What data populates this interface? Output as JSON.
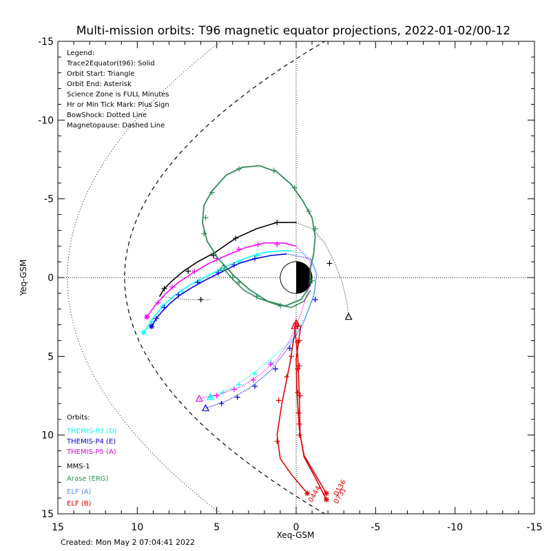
{
  "chart_data": {
    "type": "line",
    "title": "Multi-mission orbits: T96 magnetic equator projections, 2022-01-02/00-12",
    "xlabel": "Xeq-GSM",
    "ylabel": "Yeq-GSM",
    "xlim": [
      15,
      -15
    ],
    "ylim": [
      -15,
      15
    ],
    "x_ticks": [
      {
        "value": 15,
        "label": "15"
      },
      {
        "value": 10,
        "label": "10"
      },
      {
        "value": 5,
        "label": "5"
      },
      {
        "value": 0,
        "label": "0"
      },
      {
        "value": -5,
        "label": "-5"
      },
      {
        "value": -10,
        "label": "-10"
      },
      {
        "value": -15,
        "label": "-15"
      }
    ],
    "y_ticks": [
      {
        "value": -15,
        "label": "-15"
      },
      {
        "value": -10,
        "label": "-10"
      },
      {
        "value": -5,
        "label": "-5"
      },
      {
        "value": 0,
        "label": "0"
      },
      {
        "value": 5,
        "label": "5"
      },
      {
        "value": 10,
        "label": "10"
      },
      {
        "value": 15,
        "label": "15"
      }
    ],
    "legend_lines": [
      "Legend:",
      "Trace2Equator(t96): Solid",
      "Orbit Start: Triangle",
      "Orbit End: Asterisk",
      "Science Zone is FULL Minutes",
      "Hr or Min Tick Mark: Plus Sign",
      "BowShock: Dotted Line",
      "Magnetopause: Dashed Line"
    ],
    "orbits_title": "Orbits:",
    "series": [
      {
        "name": "THEMIS-P3 (D)",
        "color": "#00ffff",
        "legend_color": "#00ffff",
        "points": [
          [
            9.6,
            3.5
          ],
          [
            9.2,
            2.9
          ],
          [
            8.8,
            2.3
          ],
          [
            8.2,
            1.6
          ],
          [
            7.6,
            1.1
          ],
          [
            6.9,
            0.6
          ],
          [
            6.0,
            0.1
          ],
          [
            5.0,
            -0.4
          ],
          [
            4.0,
            -0.9
          ],
          [
            3.0,
            -1.3
          ],
          [
            2.0,
            -1.6
          ],
          [
            1.0,
            -1.7
          ],
          [
            0.3,
            -1.7
          ]
        ],
        "ticks": [
          [
            9.6,
            3.5
          ],
          [
            9.1,
            2.8
          ],
          [
            8.4,
            1.8
          ],
          [
            7.2,
            0.9
          ],
          [
            6.1,
            0.2
          ],
          [
            4.8,
            -0.5
          ],
          [
            3.6,
            -1.0
          ],
          [
            2.5,
            -1.4
          ]
        ],
        "start": [
          5.4,
          7.6
        ],
        "end": [
          9.6,
          3.5
        ]
      },
      {
        "name": "THEMIS-P4 (E)",
        "color": "#0000dd",
        "legend_color": "#0000dd",
        "points": [
          [
            9.1,
            3.1
          ],
          [
            8.8,
            2.6
          ],
          [
            8.4,
            2.1
          ],
          [
            7.9,
            1.6
          ],
          [
            7.3,
            1.1
          ],
          [
            6.5,
            0.6
          ],
          [
            5.6,
            0.1
          ],
          [
            4.6,
            -0.4
          ],
          [
            3.6,
            -0.9
          ],
          [
            2.6,
            -1.2
          ],
          [
            1.6,
            -1.4
          ],
          [
            0.6,
            -1.5
          ]
        ],
        "ticks": [
          [
            9.1,
            3.1
          ],
          [
            8.8,
            2.6
          ],
          [
            8.3,
            1.9
          ],
          [
            7.4,
            1.1
          ],
          [
            6.2,
            0.3
          ],
          [
            4.9,
            -0.3
          ],
          [
            3.9,
            -0.8
          ],
          [
            2.6,
            -1.2
          ]
        ],
        "start": [
          5.7,
          8.3
        ],
        "end": [
          9.1,
          3.1
        ]
      },
      {
        "name": "THEMIS-P5 (A)",
        "color": "#ff00ff",
        "legend_color": "#dd00dd",
        "points": [
          [
            9.4,
            2.5
          ],
          [
            8.9,
            1.8
          ],
          [
            8.2,
            1.0
          ],
          [
            7.4,
            0.3
          ],
          [
            6.5,
            -0.3
          ],
          [
            5.5,
            -0.9
          ],
          [
            4.4,
            -1.4
          ],
          [
            3.2,
            -1.9
          ],
          [
            2.0,
            -2.2
          ],
          [
            0.8,
            -2.2
          ],
          [
            0.0,
            -2.0
          ]
        ],
        "ticks": [
          [
            9.4,
            2.5
          ],
          [
            8.7,
            1.6
          ],
          [
            7.8,
            0.6
          ],
          [
            6.4,
            -0.4
          ],
          [
            5.0,
            -1.2
          ],
          [
            3.6,
            -1.8
          ],
          [
            2.4,
            -2.1
          ],
          [
            1.2,
            -2.1
          ]
        ],
        "start": [
          6.1,
          7.7
        ],
        "end": [
          9.4,
          2.5
        ]
      },
      {
        "name": "MMS-1",
        "color": "#000000",
        "legend_color": "#000000",
        "points": [
          [
            8.6,
            1.2
          ],
          [
            8.3,
            0.7
          ],
          [
            7.8,
            0.2
          ],
          [
            7.1,
            -0.4
          ],
          [
            6.2,
            -1.0
          ],
          [
            5.1,
            -1.6
          ],
          [
            3.8,
            -2.5
          ],
          [
            2.5,
            -3.1
          ],
          [
            1.2,
            -3.5
          ],
          [
            0.0,
            -3.5
          ]
        ],
        "ticks": [
          [
            8.3,
            0.7
          ],
          [
            6.8,
            -0.4
          ],
          [
            5.2,
            -1.4
          ],
          [
            3.8,
            -2.5
          ],
          [
            1.2,
            -3.5
          ]
        ],
        "dotted": [
          [
            0.0,
            -3.5
          ],
          [
            -1.0,
            -3.1
          ],
          [
            -1.8,
            -2.2
          ],
          [
            -2.4,
            -1.0
          ],
          [
            -2.9,
            0.3
          ],
          [
            -3.2,
            1.6
          ],
          [
            -3.3,
            2.5
          ]
        ],
        "dotted_ticks": [
          [
            -2.1,
            -0.9
          ]
        ],
        "tail_dotted": [
          [
            8.6,
            1.2
          ],
          [
            7.8,
            1.3
          ],
          [
            6.8,
            1.4
          ],
          [
            6.0,
            1.4
          ],
          [
            5.4,
            1.4
          ]
        ],
        "tail_ticks": [
          [
            6.0,
            1.4
          ]
        ],
        "start": [
          -3.3,
          2.5
        ],
        "end": null
      },
      {
        "name": "Arase (ERG)",
        "color": "#2e8b57",
        "legend_color": "#2e8b57",
        "loop": [
          [
            -0.9,
            -0.6
          ],
          [
            -1.1,
            -1.5
          ],
          [
            -1.2,
            -2.6
          ],
          [
            -1.0,
            -3.8
          ],
          [
            -0.4,
            -4.9
          ],
          [
            0.3,
            -5.9
          ],
          [
            1.2,
            -6.7
          ],
          [
            2.3,
            -7.1
          ],
          [
            3.4,
            -7.0
          ],
          [
            4.4,
            -6.5
          ],
          [
            5.3,
            -5.5
          ],
          [
            5.8,
            -4.6
          ],
          [
            5.9,
            -3.5
          ],
          [
            5.6,
            -2.3
          ],
          [
            4.9,
            -1.2
          ],
          [
            3.9,
            -0.1
          ],
          [
            2.9,
            0.8
          ],
          [
            1.8,
            1.5
          ],
          [
            0.7,
            1.8
          ],
          [
            -0.3,
            1.4
          ],
          [
            -0.9,
            0.5
          ],
          [
            -0.9,
            -0.6
          ]
        ],
        "inner": [
          [
            4.6,
            -0.6
          ],
          [
            4.0,
            0.1
          ],
          [
            3.3,
            0.8
          ],
          [
            2.4,
            1.3
          ],
          [
            1.3,
            1.7
          ],
          [
            0.3,
            1.9
          ],
          [
            -0.5,
            1.5
          ],
          [
            -0.9,
            0.8
          ]
        ],
        "ticks": [
          [
            -1.2,
            -3.1
          ],
          [
            -0.8,
            -4.2
          ],
          [
            0.1,
            -5.7
          ],
          [
            1.4,
            -6.8
          ],
          [
            3.6,
            -6.9
          ],
          [
            5.3,
            -5.4
          ],
          [
            5.7,
            -3.8
          ],
          [
            5.8,
            -2.8
          ],
          [
            4.0,
            0.0
          ],
          [
            3.6,
            0.3
          ],
          [
            2.5,
            1.2
          ],
          [
            1.0,
            1.8
          ],
          [
            -1.0,
            0.2
          ]
        ],
        "start": [
          4.6,
          -0.6
        ],
        "end": null
      },
      {
        "name": "ELF (A)",
        "color": "#dd0000",
        "legend_color": "#5588ff",
        "points": [
          [
            0.1,
            3.1
          ],
          [
            -0.1,
            5.0
          ],
          [
            -0.2,
            7.5
          ],
          [
            -0.25,
            10.0
          ],
          [
            -0.5,
            11.3
          ],
          [
            -1.2,
            12.5
          ],
          [
            -1.9,
            13.7
          ]
        ],
        "ticks": [
          [
            -0.1,
            3.1
          ],
          [
            -0.2,
            4.0
          ],
          [
            -0.2,
            5.6
          ],
          [
            -0.25,
            7.5
          ],
          [
            -0.2,
            9.3
          ],
          [
            -0.2,
            10.0
          ]
        ],
        "start": [
          0.1,
          3.1
        ],
        "end": [
          -1.9,
          13.7
        ]
      },
      {
        "name": "ELF (B)",
        "color": "#dd0000",
        "legend_color": "#dd0000",
        "points": [
          [
            0.0,
            2.9
          ],
          [
            0.4,
            5.5
          ],
          [
            0.9,
            8.0
          ],
          [
            1.2,
            10.0
          ],
          [
            1.0,
            11.5
          ],
          [
            0.3,
            12.5
          ],
          [
            -0.7,
            13.7
          ]
        ],
        "ticks": [
          [
            0.0,
            2.9
          ],
          [
            0.3,
            5.0
          ],
          [
            0.6,
            6.3
          ],
          [
            1.1,
            7.8
          ],
          [
            1.2,
            10.4
          ]
        ],
        "extra": [
          [
            -0.3,
            3.0
          ],
          [
            0.0,
            5.2
          ],
          [
            -0.05,
            7.3
          ],
          [
            -0.2,
            9.6
          ],
          [
            -0.5,
            11.4
          ],
          [
            -1.2,
            12.7
          ],
          [
            -1.9,
            14.1
          ]
        ],
        "extra_ticks": [
          [
            -0.1,
            4.1
          ],
          [
            -0.1,
            5.8
          ],
          [
            -0.1,
            7.3
          ],
          [
            -0.15,
            8.6
          ]
        ],
        "start": [
          0.0,
          2.9
        ],
        "end": [
          -0.7,
          13.7
        ],
        "end2": [
          -1.9,
          14.1
        ]
      }
    ],
    "annotations": [
      {
        "text": "0444",
        "x": -1.0,
        "y": 14.3,
        "color": "#dd0000"
      },
      {
        "text": "0136",
        "x": -2.6,
        "y": 13.9,
        "color": "#dd0000"
      },
      {
        "text": "0731",
        "x": -2.6,
        "y": 14.4,
        "color": "#dd0000"
      }
    ],
    "grid": "dotted axes at x=0 and y=0",
    "legend_placement": "top-left (styles) and bottom-left (orbits)"
  },
  "footer": {
    "created": "Created: Mon May  2 07:04:41 2022"
  }
}
